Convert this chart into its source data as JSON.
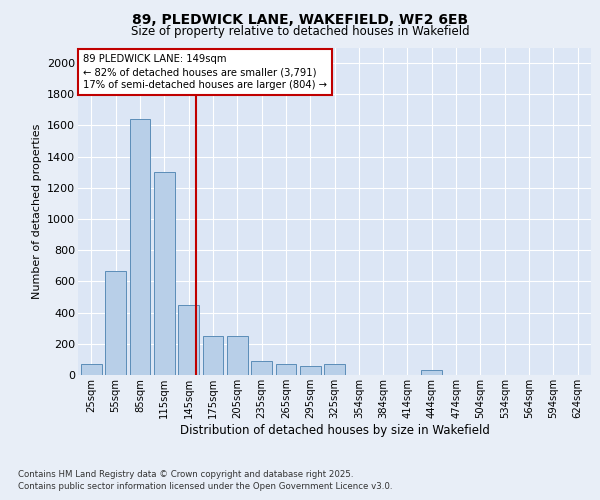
{
  "title_line1": "89, PLEDWICK LANE, WAKEFIELD, WF2 6EB",
  "title_line2": "Size of property relative to detached houses in Wakefield",
  "xlabel": "Distribution of detached houses by size in Wakefield",
  "ylabel": "Number of detached properties",
  "categories": [
    "25sqm",
    "55sqm",
    "85sqm",
    "115sqm",
    "145sqm",
    "175sqm",
    "205sqm",
    "235sqm",
    "265sqm",
    "295sqm",
    "325sqm",
    "354sqm",
    "384sqm",
    "414sqm",
    "444sqm",
    "474sqm",
    "504sqm",
    "534sqm",
    "564sqm",
    "594sqm",
    "624sqm"
  ],
  "values": [
    70,
    670,
    1640,
    1300,
    450,
    250,
    250,
    90,
    70,
    60,
    70,
    0,
    0,
    0,
    30,
    0,
    0,
    0,
    0,
    0,
    0
  ],
  "bar_color": "#b8cfe8",
  "bar_edge_color": "#5b8db8",
  "vline_color": "#c00000",
  "vline_x": 4,
  "annotation_line1": "89 PLEDWICK LANE: 149sqm",
  "annotation_line2": "← 82% of detached houses are smaller (3,791)",
  "annotation_line3": "17% of semi-detached houses are larger (804) →",
  "ylim": [
    0,
    2100
  ],
  "yticks": [
    0,
    200,
    400,
    600,
    800,
    1000,
    1200,
    1400,
    1600,
    1800,
    2000
  ],
  "background_color": "#e8eef7",
  "plot_bg_color": "#dce6f5",
  "grid_color": "#ffffff",
  "footer_line1": "Contains HM Land Registry data © Crown copyright and database right 2025.",
  "footer_line2": "Contains public sector information licensed under the Open Government Licence v3.0."
}
